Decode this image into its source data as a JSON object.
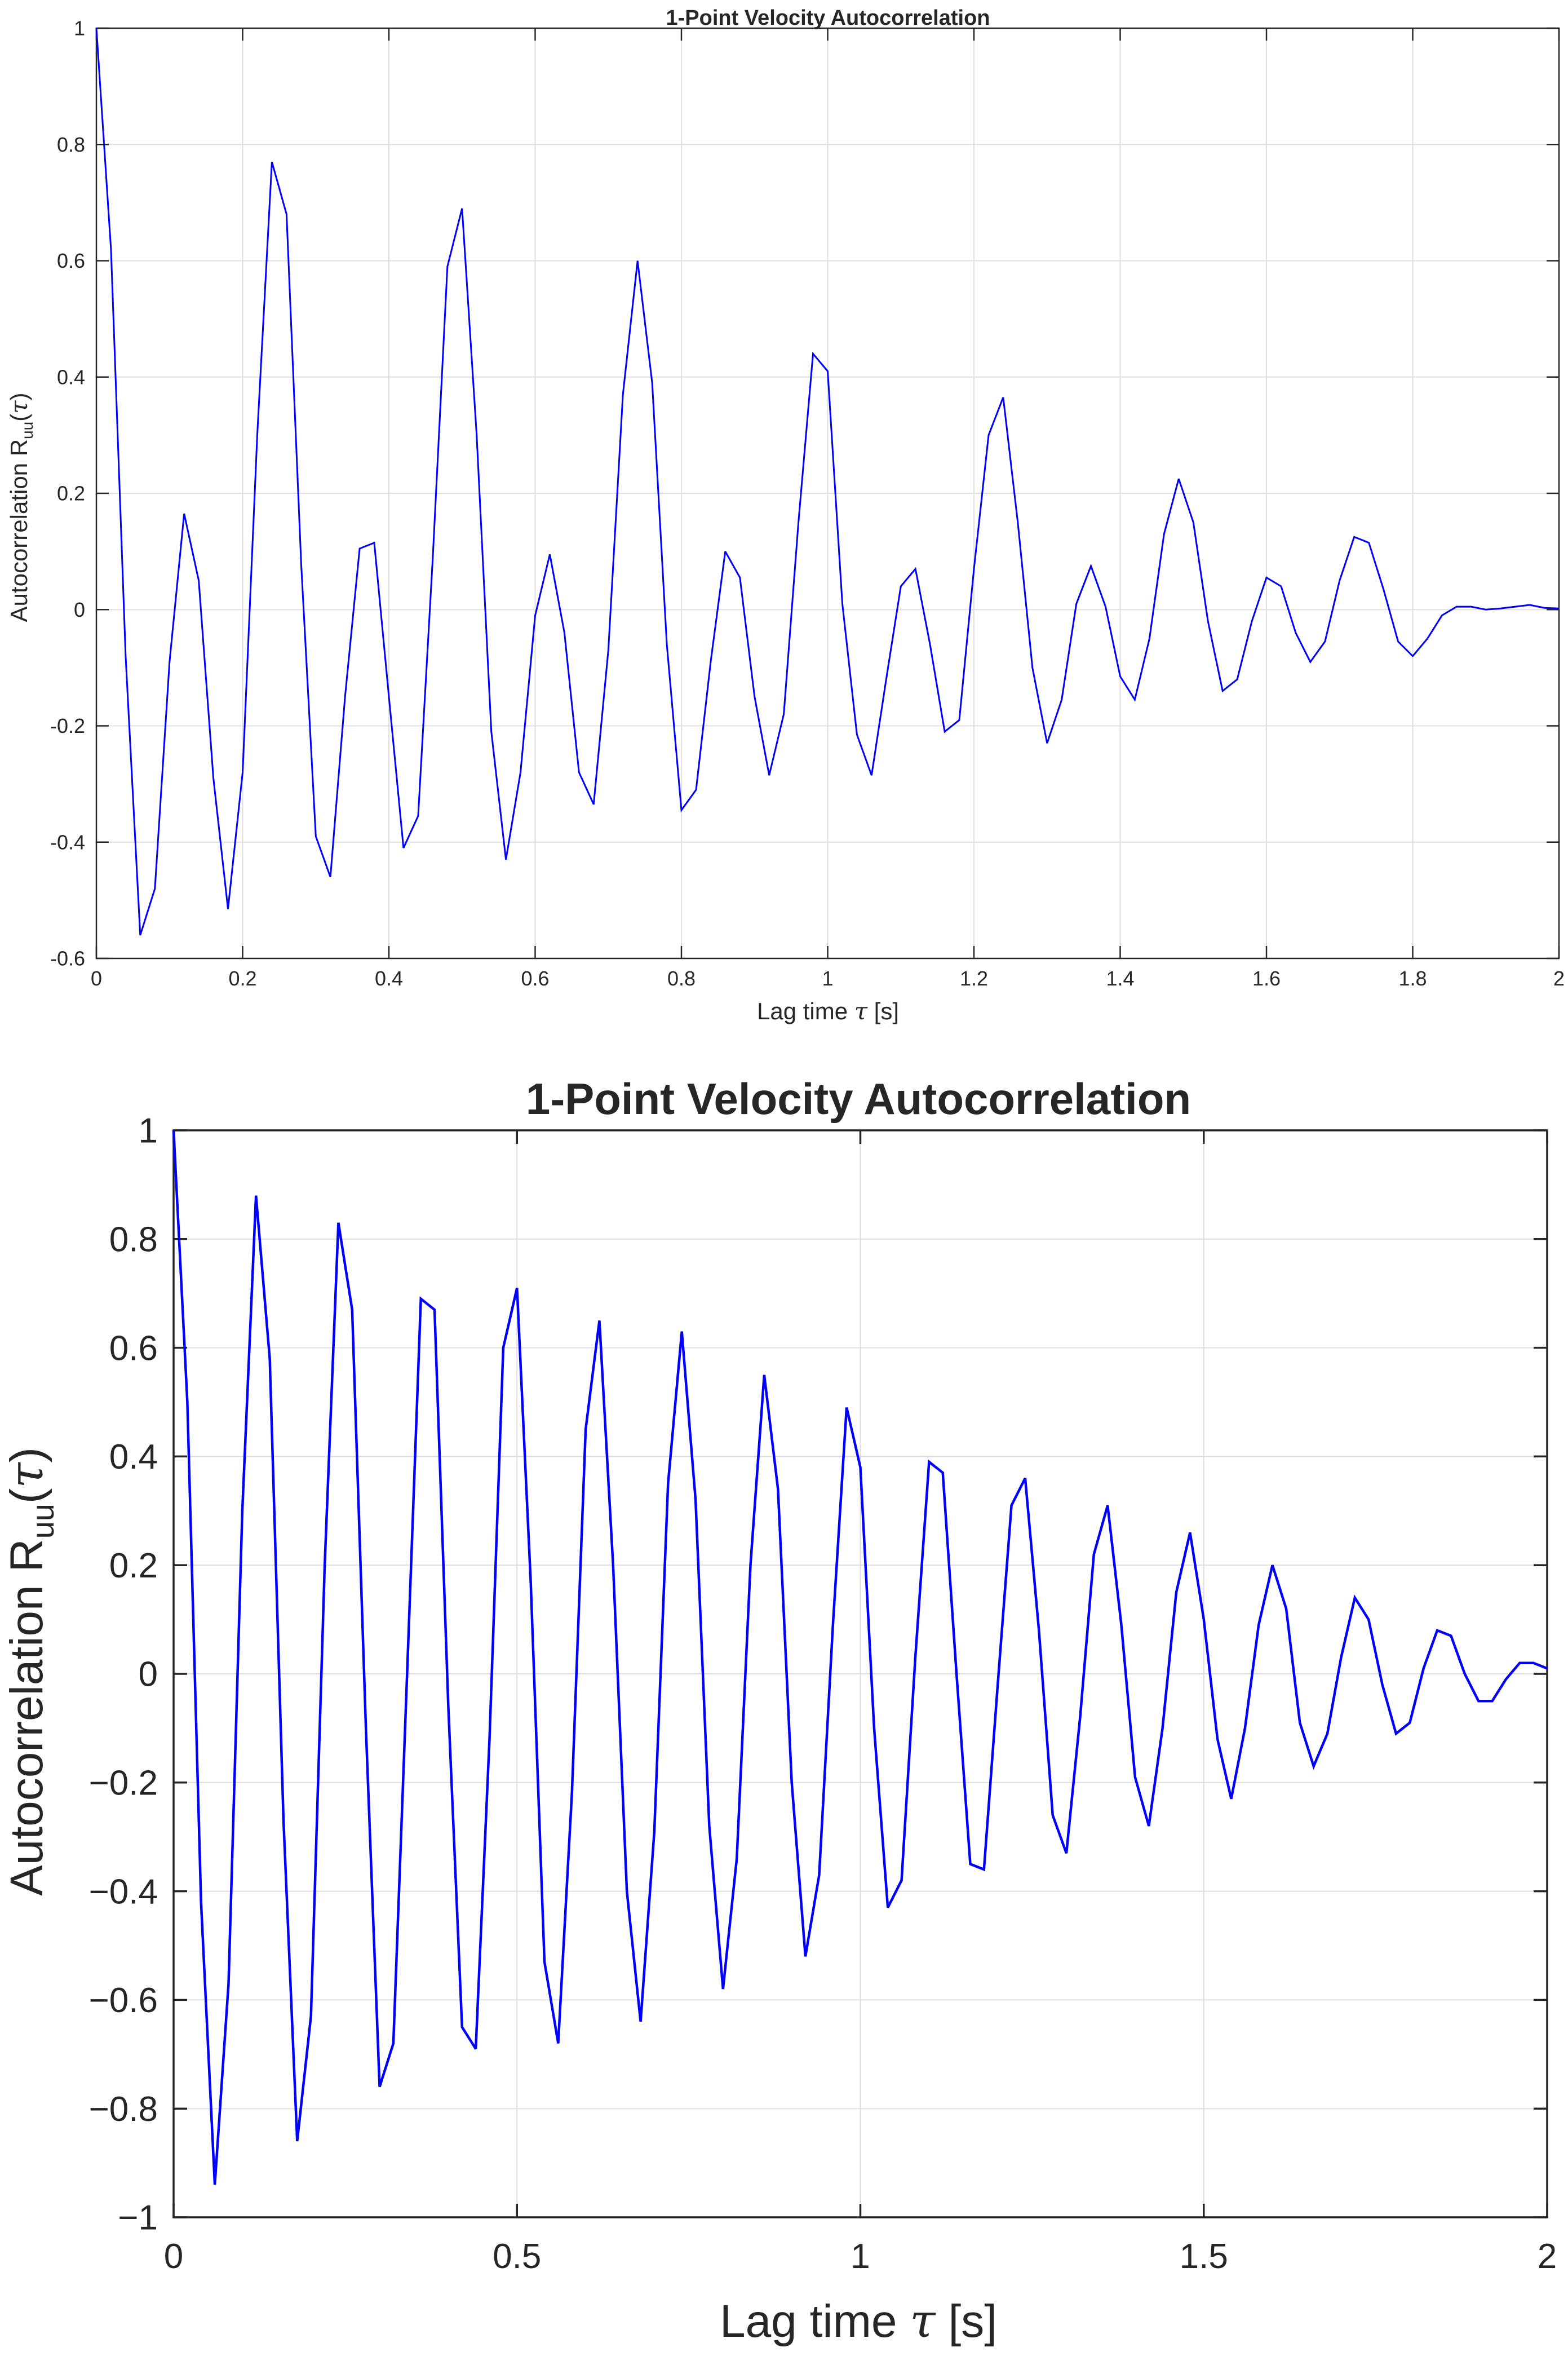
{
  "colors": {
    "line": "#0000ff",
    "grid": "#dfdfdf",
    "axis": "#262626",
    "background": "#ffffff"
  },
  "chart_data": [
    {
      "type": "line",
      "title": "1-Point Velocity Autocorrelation",
      "xlabel_prefix": "Lag time",
      "xlabel_symbol": "τ",
      "xlabel_unit": "[s]",
      "ylabel_prefix": "Autocorrelation R",
      "ylabel_sub": "uu",
      "ylabel_open": "(",
      "ylabel_symbol": "τ",
      "ylabel_close": ")",
      "xlim": [
        0,
        2
      ],
      "ylim": [
        -0.6,
        1
      ],
      "xticks": [
        0,
        0.2,
        0.4,
        0.6,
        0.8,
        1,
        1.2,
        1.4,
        1.6,
        1.8,
        2
      ],
      "xtick_labels": [
        "0",
        "0.2",
        "0.4",
        "0.6",
        "0.8",
        "1",
        "1.2",
        "1.4",
        "1.6",
        "1.8",
        "2"
      ],
      "yticks": [
        -0.6,
        -0.4,
        -0.2,
        0,
        0.2,
        0.4,
        0.6,
        0.8,
        1
      ],
      "ytick_labels": [
        "-0.6",
        "-0.4",
        "-0.2",
        "0",
        "0.2",
        "0.4",
        "0.6",
        "0.8",
        "1"
      ],
      "grid": true,
      "x": [
        0,
        0.02,
        0.04,
        0.06,
        0.08,
        0.1,
        0.12,
        0.14,
        0.16,
        0.18,
        0.2,
        0.22,
        0.24,
        0.26,
        0.28,
        0.3,
        0.32,
        0.34,
        0.36,
        0.38,
        0.4,
        0.42,
        0.44,
        0.46,
        0.48,
        0.5,
        0.52,
        0.54,
        0.56,
        0.58,
        0.6,
        0.62,
        0.64,
        0.66,
        0.68,
        0.7,
        0.72,
        0.74,
        0.76,
        0.78,
        0.8,
        0.82,
        0.84,
        0.86,
        0.88,
        0.9,
        0.92,
        0.94,
        0.96,
        0.98,
        1,
        1.02,
        1.04,
        1.06,
        1.08,
        1.1,
        1.12,
        1.14,
        1.16,
        1.18,
        1.2,
        1.22,
        1.24,
        1.26,
        1.28,
        1.3,
        1.32,
        1.34,
        1.36,
        1.38,
        1.4,
        1.42,
        1.44,
        1.46,
        1.48,
        1.5,
        1.52,
        1.54,
        1.56,
        1.58,
        1.6,
        1.62,
        1.64,
        1.66,
        1.68,
        1.7,
        1.72,
        1.74,
        1.76,
        1.78,
        1.8,
        1.82,
        1.84,
        1.86,
        1.88,
        1.9,
        1.92,
        1.94,
        1.96,
        1.98,
        2
      ],
      "y": [
        1,
        0.62,
        -0.08,
        -0.56,
        -0.48,
        -0.09,
        0.165,
        0.05,
        -0.29,
        -0.515,
        -0.28,
        0.3,
        0.77,
        0.68,
        0.08,
        -0.39,
        -0.46,
        -0.15,
        0.105,
        0.115,
        -0.15,
        -0.41,
        -0.355,
        0.09,
        0.59,
        0.69,
        0.3,
        -0.21,
        -0.43,
        -0.28,
        -0.01,
        0.095,
        -0.04,
        -0.28,
        -0.335,
        -0.07,
        0.37,
        0.6,
        0.39,
        -0.06,
        -0.345,
        -0.31,
        -0.09,
        0.1,
        0.055,
        -0.15,
        -0.285,
        -0.18,
        0.15,
        0.44,
        0.41,
        0.01,
        -0.215,
        -0.285,
        -0.12,
        0.04,
        0.07,
        -0.06,
        -0.21,
        -0.19,
        0.07,
        0.3,
        0.365,
        0.15,
        -0.1,
        -0.23,
        -0.155,
        0.01,
        0.075,
        0.005,
        -0.115,
        -0.155,
        -0.05,
        0.13,
        0.225,
        0.15,
        -0.02,
        -0.14,
        -0.12,
        -0.02,
        0.055,
        0.04,
        -0.04,
        -0.09,
        -0.055,
        0.05,
        0.125,
        0.115,
        0.035,
        -0.055,
        -0.08,
        -0.05,
        -0.01,
        0.005,
        0.005,
        0.0,
        0.002,
        0.005,
        0.008,
        0.003,
        0.002
      ]
    },
    {
      "type": "line",
      "title": "1-Point Velocity Autocorrelation",
      "xlabel_prefix": "Lag time",
      "xlabel_symbol": "τ",
      "xlabel_unit": "[s]",
      "ylabel_prefix": "Autocorrelation R",
      "ylabel_sub": "uu",
      "ylabel_open": "(",
      "ylabel_symbol": "τ",
      "ylabel_close": ")",
      "xlim": [
        0,
        2
      ],
      "ylim": [
        -1,
        1
      ],
      "xticks": [
        0,
        0.5,
        1,
        1.5,
        2
      ],
      "xtick_labels": [
        "0",
        "0.5",
        "1",
        "1.5",
        "2"
      ],
      "yticks": [
        -1,
        -0.8,
        -0.6,
        -0.4,
        -0.2,
        0,
        0.2,
        0.4,
        0.6,
        0.8,
        1
      ],
      "ytick_labels": [
        "−1",
        "−0.8",
        "−0.6",
        "−0.4",
        "−0.2",
        "0",
        "0.2",
        "0.4",
        "0.6",
        "0.8",
        "1"
      ],
      "grid": true,
      "x": [
        0,
        0.02,
        0.04,
        0.06,
        0.08,
        0.1,
        0.12,
        0.14,
        0.16,
        0.18,
        0.2,
        0.22,
        0.24,
        0.26,
        0.28,
        0.3,
        0.32,
        0.34,
        0.36,
        0.38,
        0.4,
        0.42,
        0.44,
        0.46,
        0.48,
        0.5,
        0.52,
        0.54,
        0.56,
        0.58,
        0.6,
        0.62,
        0.64,
        0.66,
        0.68,
        0.7,
        0.72,
        0.74,
        0.76,
        0.78,
        0.8,
        0.82,
        0.84,
        0.86,
        0.88,
        0.9,
        0.92,
        0.94,
        0.96,
        0.98,
        1,
        1.02,
        1.04,
        1.06,
        1.08,
        1.1,
        1.12,
        1.14,
        1.16,
        1.18,
        1.2,
        1.22,
        1.24,
        1.26,
        1.28,
        1.3,
        1.32,
        1.34,
        1.36,
        1.38,
        1.4,
        1.42,
        1.44,
        1.46,
        1.48,
        1.5,
        1.52,
        1.54,
        1.56,
        1.58,
        1.6,
        1.62,
        1.64,
        1.66,
        1.68,
        1.7,
        1.72,
        1.74,
        1.76,
        1.78,
        1.8,
        1.82,
        1.84,
        1.86,
        1.88,
        1.9,
        1.92,
        1.94,
        1.96,
        1.98,
        2
      ],
      "y": [
        1,
        0.5,
        -0.42,
        -0.94,
        -0.57,
        0.3,
        0.88,
        0.58,
        -0.27,
        -0.86,
        -0.63,
        0.2,
        0.83,
        0.67,
        -0.1,
        -0.76,
        -0.68,
        0.0,
        0.69,
        0.67,
        -0.06,
        -0.65,
        -0.69,
        -0.12,
        0.6,
        0.71,
        0.17,
        -0.53,
        -0.68,
        -0.22,
        0.45,
        0.65,
        0.2,
        -0.4,
        -0.64,
        -0.29,
        0.35,
        0.63,
        0.32,
        -0.28,
        -0.58,
        -0.34,
        0.2,
        0.55,
        0.34,
        -0.2,
        -0.52,
        -0.37,
        0.09,
        0.49,
        0.38,
        -0.1,
        -0.43,
        -0.38,
        0.03,
        0.39,
        0.37,
        0.0,
        -0.35,
        -0.36,
        -0.02,
        0.31,
        0.36,
        0.08,
        -0.26,
        -0.33,
        -0.08,
        0.22,
        0.31,
        0.09,
        -0.19,
        -0.28,
        -0.1,
        0.15,
        0.26,
        0.1,
        -0.12,
        -0.23,
        -0.1,
        0.09,
        0.2,
        0.12,
        -0.09,
        -0.17,
        -0.11,
        0.03,
        0.14,
        0.1,
        -0.02,
        -0.11,
        -0.09,
        0.01,
        0.08,
        0.07,
        0.0,
        -0.05,
        -0.05,
        -0.01,
        0.02,
        0.02,
        0.01
      ]
    }
  ]
}
